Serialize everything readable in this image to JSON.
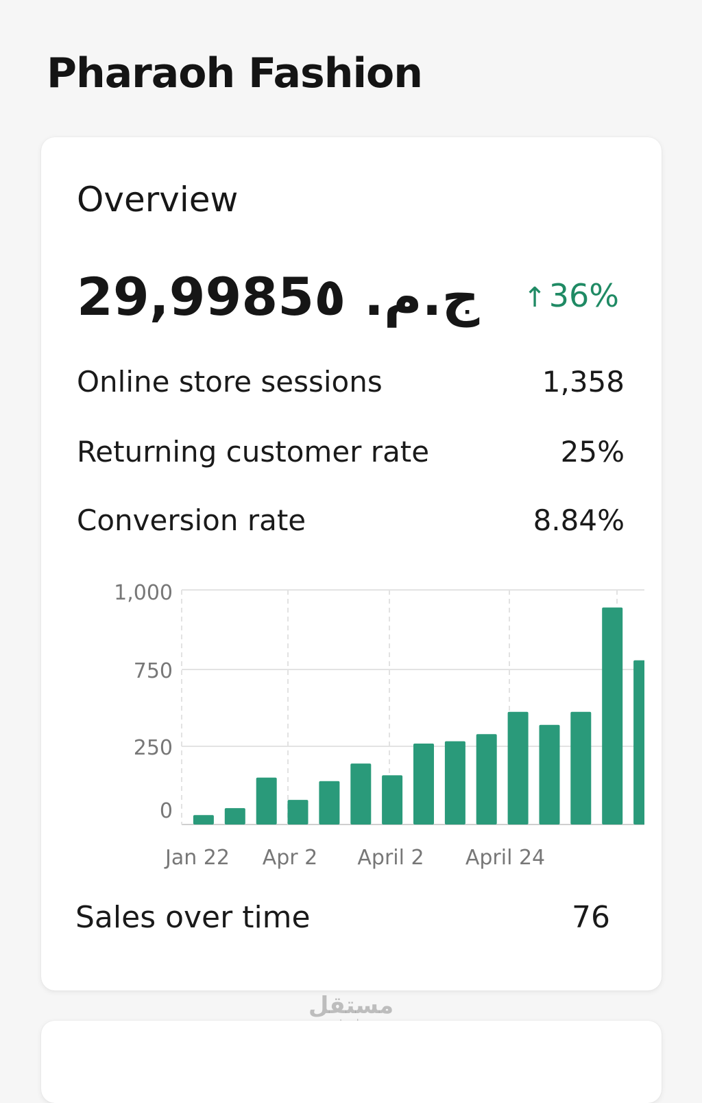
{
  "app": {
    "title": "Pharaoh Fashion"
  },
  "overview": {
    "title": "Overview",
    "total_sales": "ج.م. 29,9985٥",
    "change_arrow": "↑",
    "change": "36%",
    "metrics": [
      {
        "label": "Online store sessions",
        "value": "1,358"
      },
      {
        "label": "Returning customer rate",
        "value": "25%"
      },
      {
        "label": "Conversion rate",
        "value": "8.84%"
      }
    ],
    "footer_label": "Sales over time",
    "footer_value": "76"
  },
  "colors": {
    "accent": "#2a9a7a",
    "positive": "#1f8a64",
    "background": "#f6f6f6",
    "card": "#ffffff"
  },
  "watermark": {
    "logo": "مستقل",
    "url": "mostaql.com"
  },
  "chart_data": {
    "type": "bar",
    "y_ticks": [
      "1,000",
      "750",
      "250",
      "0"
    ],
    "x_tick_labels": [
      "Jan 22",
      "Apr 2",
      "April 2",
      "April 24"
    ],
    "ylim": [
      0,
      1000
    ],
    "values": [
      40,
      70,
      200,
      105,
      185,
      260,
      210,
      345,
      355,
      385,
      480,
      425,
      480,
      925,
      700
    ],
    "bar_color": "#2a9a7a",
    "grid": true
  }
}
